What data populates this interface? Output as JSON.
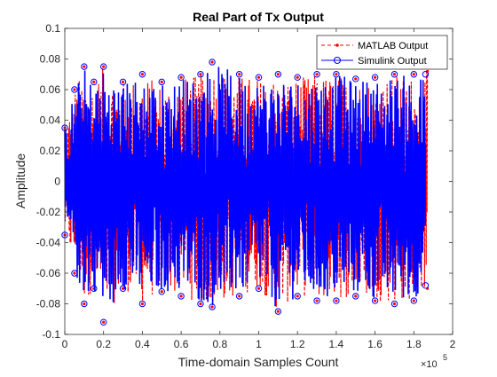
{
  "chart_data": {
    "type": "line",
    "title": "Real Part of Tx Output",
    "xlabel": "Time-domain Samples Count",
    "ylabel": "Amplitude",
    "x_exponent_label": "×10",
    "x_exponent_power": "5",
    "xlim": [
      0,
      2
    ],
    "ylim": [
      -0.1,
      0.1
    ],
    "x_ticks": [
      "0",
      "0.2",
      "0.4",
      "0.6",
      "0.8",
      "1",
      "1.2",
      "1.4",
      "1.6",
      "1.8",
      "2"
    ],
    "y_ticks": [
      "0.1",
      "0.08",
      "0.06",
      "0.04",
      "0.02",
      "0",
      "-0.02",
      "-0.04",
      "-0.06",
      "-0.08",
      "-0.1"
    ],
    "x_data_end": 1.87,
    "series": [
      {
        "name": "MATLAB Output",
        "color": "#ff0000",
        "line_style": "dashed",
        "marker": "dot",
        "envelope_x": [
          0.0,
          0.05,
          0.1,
          0.15,
          0.2,
          0.3,
          0.4,
          0.5,
          0.6,
          0.7,
          0.76,
          0.9,
          1.0,
          1.1,
          1.2,
          1.3,
          1.4,
          1.5,
          1.6,
          1.7,
          1.8,
          1.87
        ],
        "envelope_max": [
          0.035,
          0.06,
          0.075,
          0.065,
          0.075,
          0.065,
          0.07,
          0.065,
          0.068,
          0.07,
          0.078,
          0.07,
          0.068,
          0.07,
          0.068,
          0.07,
          0.07,
          0.067,
          0.068,
          0.07,
          0.07,
          0.072
        ],
        "envelope_min": [
          -0.035,
          -0.06,
          -0.08,
          -0.07,
          -0.092,
          -0.07,
          -0.08,
          -0.072,
          -0.075,
          -0.08,
          -0.082,
          -0.075,
          -0.07,
          -0.085,
          -0.075,
          -0.078,
          -0.078,
          -0.075,
          -0.078,
          -0.08,
          -0.078,
          -0.07
        ]
      },
      {
        "name": "Simulink Output",
        "color": "#0000ff",
        "line_style": "solid",
        "marker": "circle",
        "envelope_x": [
          0.0,
          0.05,
          0.1,
          0.15,
          0.2,
          0.3,
          0.4,
          0.5,
          0.6,
          0.7,
          0.76,
          0.9,
          1.0,
          1.1,
          1.2,
          1.3,
          1.4,
          1.5,
          1.6,
          1.7,
          1.8,
          1.86
        ],
        "envelope_max": [
          0.035,
          0.06,
          0.075,
          0.065,
          0.075,
          0.065,
          0.07,
          0.065,
          0.068,
          0.07,
          0.078,
          0.07,
          0.068,
          0.07,
          0.068,
          0.07,
          0.07,
          0.067,
          0.068,
          0.07,
          0.07,
          0.07
        ],
        "envelope_min": [
          -0.035,
          -0.06,
          -0.08,
          -0.07,
          -0.092,
          -0.07,
          -0.08,
          -0.072,
          -0.075,
          -0.08,
          -0.082,
          -0.075,
          -0.07,
          -0.085,
          -0.075,
          -0.078,
          -0.078,
          -0.075,
          -0.078,
          -0.08,
          -0.078,
          -0.068
        ]
      }
    ],
    "grid": false,
    "legend_position": "top-right"
  }
}
